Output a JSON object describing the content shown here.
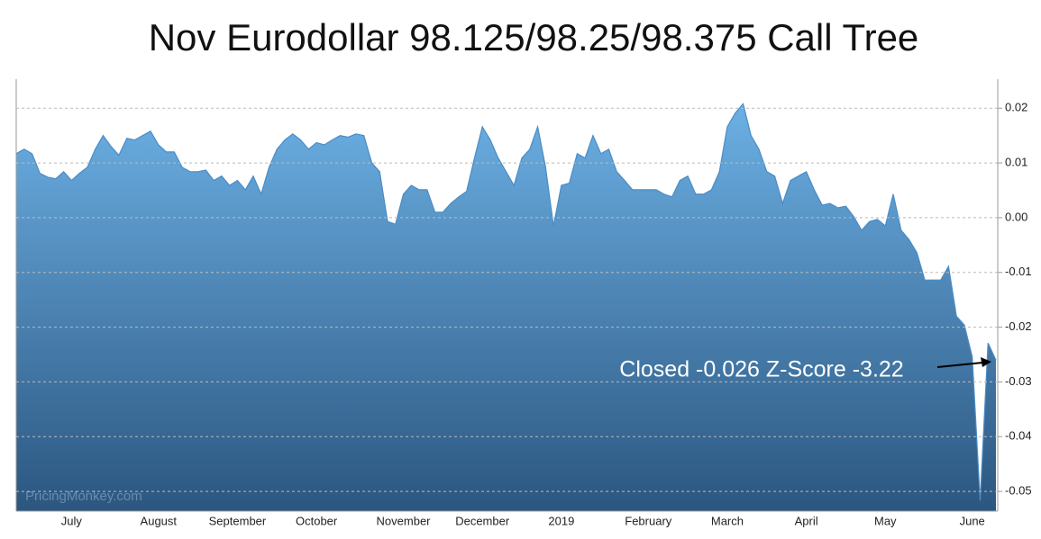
{
  "chart_data": {
    "type": "area",
    "title": "Nov Eurodollar 98.125/98.25/98.375 Call Tree",
    "annotation": "Closed -0.026 Z-Score -3.22",
    "watermark": "PricingMonkey.com",
    "categories": [
      null,
      null,
      null,
      null,
      null,
      null,
      null,
      "July",
      null,
      null,
      null,
      null,
      null,
      null,
      null,
      null,
      null,
      null,
      "August",
      null,
      null,
      null,
      null,
      null,
      null,
      null,
      null,
      null,
      "September",
      null,
      null,
      null,
      null,
      null,
      null,
      null,
      null,
      null,
      "October",
      null,
      null,
      null,
      null,
      null,
      null,
      null,
      null,
      null,
      null,
      "November",
      null,
      null,
      null,
      null,
      null,
      null,
      null,
      null,
      null,
      "December",
      null,
      null,
      null,
      null,
      null,
      null,
      null,
      null,
      null,
      "2019",
      null,
      null,
      null,
      null,
      null,
      null,
      null,
      null,
      null,
      null,
      "February",
      null,
      null,
      null,
      null,
      null,
      null,
      null,
      null,
      null,
      "March",
      null,
      null,
      null,
      null,
      null,
      null,
      null,
      null,
      null,
      "April",
      null,
      null,
      null,
      null,
      null,
      null,
      null,
      null,
      null,
      "May",
      null,
      null,
      null,
      null,
      null,
      null,
      null,
      null,
      null,
      null,
      "June",
      null,
      null,
      null
    ],
    "values": [
      0.0117,
      0.0125,
      0.0117,
      0.0081,
      0.0074,
      0.0071,
      0.0084,
      0.0068,
      0.0081,
      0.0092,
      0.0125,
      0.015,
      0.013,
      0.0114,
      0.0145,
      0.0142,
      0.015,
      0.0158,
      0.0133,
      0.012,
      0.012,
      0.0092,
      0.0084,
      0.0084,
      0.0087,
      0.0068,
      0.0076,
      0.0059,
      0.0068,
      0.0051,
      0.0076,
      0.0043,
      0.0092,
      0.0125,
      0.0142,
      0.0153,
      0.0142,
      0.0125,
      0.0137,
      0.0133,
      0.0142,
      0.015,
      0.0147,
      0.0153,
      0.015,
      0.01,
      0.0084,
      -0.0007,
      -0.0012,
      0.0043,
      0.0059,
      0.0051,
      0.0051,
      0.001,
      0.001,
      0.0026,
      0.0038,
      0.0048,
      0.0109,
      0.0166,
      0.0142,
      0.0109,
      0.0084,
      0.0059,
      0.0109,
      0.0125,
      0.0166,
      0.0092,
      -0.0015,
      0.0059,
      0.0063,
      0.0117,
      0.0109,
      0.015,
      0.0117,
      0.0125,
      0.0084,
      0.0068,
      0.0051,
      0.0051,
      0.0051,
      0.0051,
      0.0043,
      0.0038,
      0.0068,
      0.0076,
      0.0043,
      0.0043,
      0.0051,
      0.0084,
      0.0166,
      0.0191,
      0.0208,
      0.015,
      0.0125,
      0.0084,
      0.0076,
      0.0026,
      0.0068,
      0.0076,
      0.0084,
      0.0051,
      0.0023,
      0.0026,
      0.0018,
      0.0021,
      0.0002,
      -0.0023,
      -0.0007,
      -0.0003,
      -0.0015,
      0.0043,
      -0.0023,
      -0.004,
      -0.0064,
      -0.0114,
      -0.0114,
      -0.0114,
      -0.0089,
      -0.018,
      -0.0196,
      -0.0254,
      -0.0517,
      -0.0229,
      -0.026
    ],
    "colors": [
      "#6cb0e4",
      "#2b5680"
    ],
    "line_color": "#4a8cc6",
    "ylim": [
      -0.0536,
      0.0253
    ],
    "yticks": [
      0.02,
      0.01,
      {
        "value": 0,
        "label": "0.00"
      },
      -0.01,
      -0.02,
      -0.03,
      -0.04,
      -0.05
    ],
    "grid": true
  }
}
